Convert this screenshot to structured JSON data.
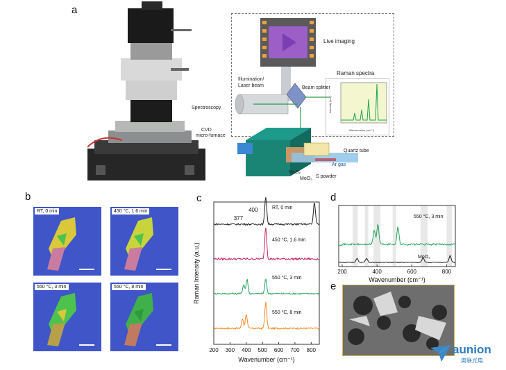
{
  "panel_labels": {
    "a": "a",
    "b": "b",
    "c": "c",
    "d": "d",
    "e": "e"
  },
  "panel_a": {
    "live_imaging": "Live imaging",
    "raman_spectra": "Raman spectra",
    "illumination": "Illumination/",
    "laser_beam": "Laser beam",
    "beam_splitter": "Beam splitter",
    "spectroscopy": "Spectroscopy",
    "cvd": "CVD",
    "micro_furnace": "micro-furnace",
    "quartz_tube": "Quartz tube",
    "ar_gas": "Ar gas",
    "mos2": "MoS₂",
    "moo3": "MoO₃",
    "s_powder": "S powder",
    "inset_ylabel": "Intensity (a.u.)",
    "inset_xlabel": "Wavenumber (cm⁻¹)"
  },
  "panel_b": {
    "labels": [
      "RT, 0 min",
      "450 °C, 1.6 min",
      "550 °C, 3 min",
      "550 °C, 8 min"
    ]
  },
  "colors": {
    "orange": "#f08a1c",
    "green": "#1fa35a",
    "magenta": "#c8245e",
    "black": "#222222",
    "bg_blue": "#3f55c8",
    "inset_bg": "#f3f6cf"
  },
  "chart_data": [
    {
      "type": "line",
      "panel": "c",
      "xlabel": "Wavenumber (cm⁻¹)",
      "ylabel": "Raman Intensity (a.u.)",
      "xlim": [
        200,
        850
      ],
      "xticks": [
        200,
        300,
        400,
        500,
        600,
        700,
        800
      ],
      "annotations": [
        "377",
        "400"
      ],
      "series": [
        {
          "name": "550 °C, 8 min",
          "color": "#f08a1c",
          "peaks": [
            [
              377,
              0.35
            ],
            [
              400,
              0.55
            ],
            [
              520,
              1.0
            ]
          ]
        },
        {
          "name": "550 °C, 3 min",
          "color": "#1fa35a",
          "peaks": [
            [
              384,
              0.35
            ],
            [
              405,
              0.55
            ],
            [
              520,
              0.55
            ]
          ]
        },
        {
          "name": "450 °C, 1.6 min",
          "color": "#c8245e",
          "peaks": [
            [
              520,
              1.0
            ]
          ]
        },
        {
          "name": "RT, 0 min",
          "color": "#222222",
          "peaks": [
            [
              520,
              1.0
            ],
            [
              820,
              0.8
            ]
          ]
        }
      ]
    },
    {
      "type": "line",
      "panel": "d",
      "xlabel": "Wavenumber (cm⁻¹)",
      "xlim": [
        180,
        850
      ],
      "xticks": [
        200,
        400,
        600,
        800
      ],
      "series": [
        {
          "name": "550 °C, 3 min",
          "color": "#1fa35a",
          "peaks": [
            [
              384,
              0.5
            ],
            [
              405,
              0.7
            ],
            [
              520,
              0.6
            ]
          ]
        },
        {
          "name": "MoO₃",
          "color": "#222222",
          "peaks": [
            [
              285,
              0.3
            ],
            [
              340,
              0.3
            ],
            [
              665,
              0.35
            ],
            [
              820,
              0.5
            ]
          ]
        }
      ]
    }
  ],
  "logo": {
    "name": "aunion",
    "subtitle": "奥联光电"
  }
}
